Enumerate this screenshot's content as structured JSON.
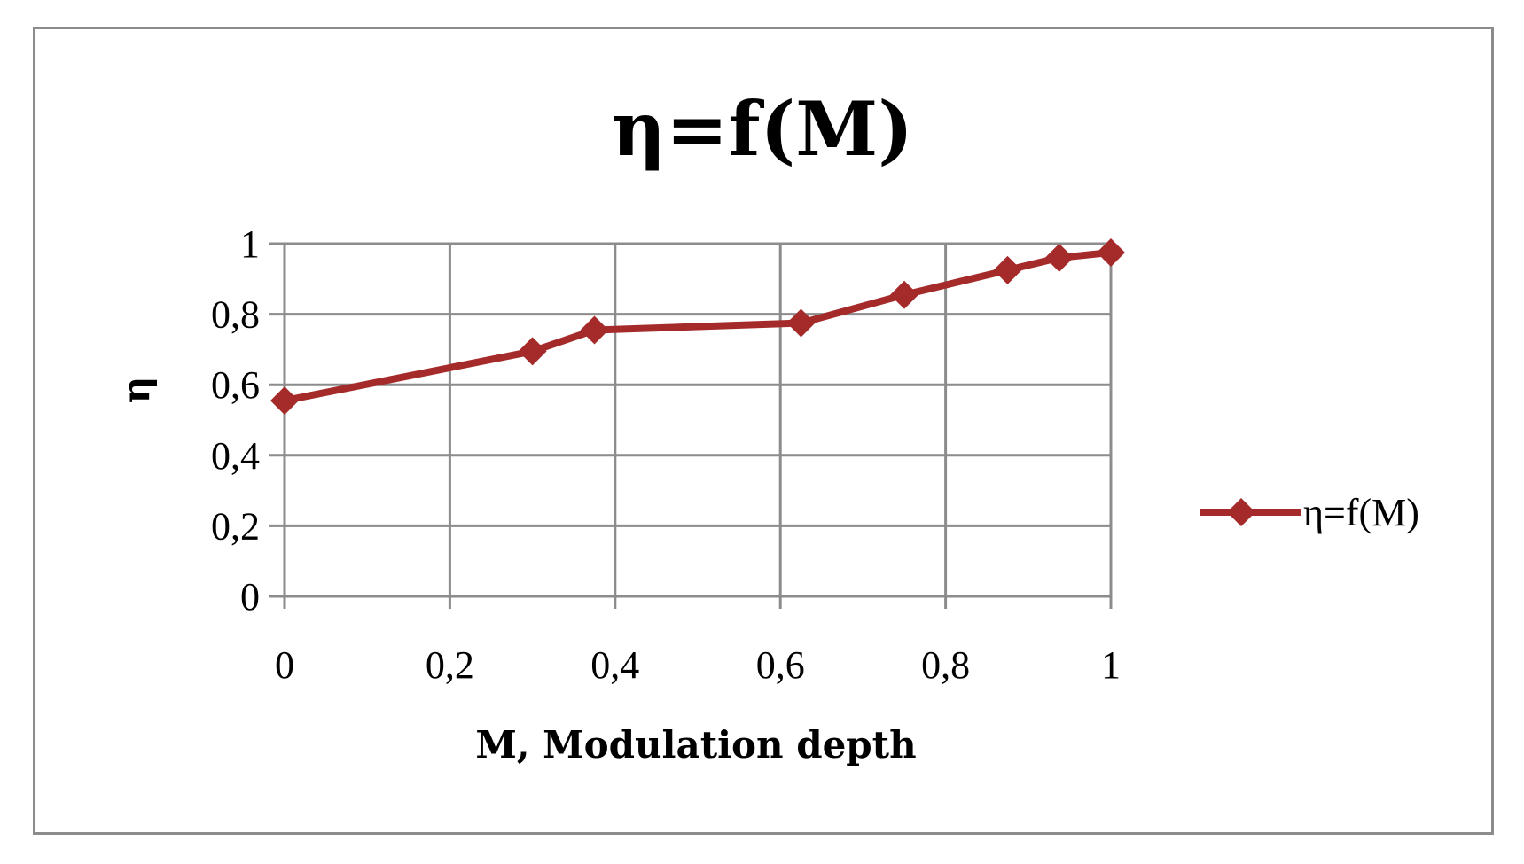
{
  "chart_data": {
    "type": "line",
    "title": "η=f(M)",
    "xlabel": "M, Modulation depth",
    "ylabel": "η",
    "xlim": [
      0,
      1
    ],
    "ylim": [
      0,
      1
    ],
    "x_ticks": [
      0,
      0.2,
      0.4,
      0.6,
      0.8,
      1
    ],
    "x_tick_labels": [
      "0",
      "0,2",
      "0,4",
      "0,6",
      "0,8",
      "1"
    ],
    "y_ticks": [
      0,
      0.2,
      0.4,
      0.6,
      0.8,
      1
    ],
    "y_tick_labels": [
      "0",
      "0,2",
      "0,4",
      "0,6",
      "0,8",
      "1"
    ],
    "grid": true,
    "legend_position": "right",
    "series": [
      {
        "name": "η=f(M)",
        "color": "#a52a2a",
        "marker": "diamond",
        "x": [
          0,
          0.3,
          0.375,
          0.625,
          0.75,
          0.875,
          0.9375,
          1
        ],
        "y": [
          0.555,
          0.695,
          0.755,
          0.775,
          0.855,
          0.925,
          0.96,
          0.975
        ]
      }
    ]
  }
}
